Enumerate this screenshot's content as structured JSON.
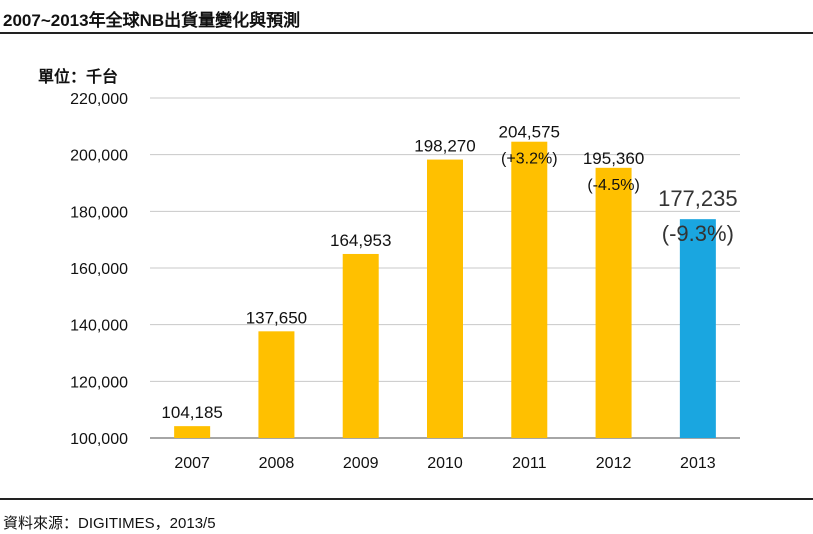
{
  "header": {
    "title": "2007~2013年全球NB出貨量變化與預測"
  },
  "footer": {
    "source": "資料來源：DIGITIMES，2013/5"
  },
  "chart_data": {
    "type": "bar",
    "unit_label": "單位：千台",
    "categories": [
      "2007",
      "2008",
      "2009",
      "2010",
      "2011",
      "2012",
      "2013"
    ],
    "values": [
      104185,
      137650,
      164953,
      198270,
      204575,
      195360,
      177235
    ],
    "data_labels": [
      "104,185",
      "137,650",
      "164,953",
      "198,270",
      "204,575",
      "195,360",
      "177,235"
    ],
    "change_labels": [
      "",
      "",
      "",
      "",
      "(+3.2%)",
      "(-4.5%)",
      "(-9.3%)"
    ],
    "ylim": [
      100000,
      220000
    ],
    "yticks": [
      100000,
      120000,
      140000,
      160000,
      180000,
      200000,
      220000
    ],
    "ytick_labels": [
      "100,000",
      "120,000",
      "140,000",
      "160,000",
      "180,000",
      "200,000",
      "220,000"
    ],
    "grid": true,
    "colors": {
      "actual": "#FFC000",
      "forecast": "#1AA6E0",
      "grid": "#C8C8C8",
      "axis": "#888888"
    },
    "highlight_index": 6
  }
}
